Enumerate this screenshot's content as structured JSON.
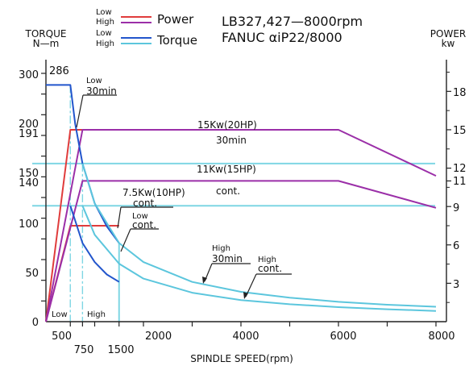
{
  "chart_data": {
    "type": "line",
    "title": "LB327,427—8000rpm",
    "subtitle": "FANUC αiP22/8000",
    "xlabel": "SPINDLE SPEED(rpm)",
    "ylabel": "TORQUE",
    "ylabel_unit": "N—m",
    "y2label": "POWER",
    "y2label_unit": "kw",
    "xlim": [
      0,
      8000
    ],
    "ylim": [
      0,
      300
    ],
    "y2lim": [
      0,
      20.3
    ],
    "x_tick_labels": [
      "500",
      "750",
      "1500",
      "2000",
      "4000",
      "6000",
      "8000"
    ],
    "y_tick_labels": [
      "0",
      "50",
      "100",
      "140",
      "150",
      "191",
      "200",
      "286",
      "300"
    ],
    "y2_tick_labels": [
      "3",
      "6",
      "9",
      "11",
      "12",
      "15",
      "18"
    ],
    "legend": {
      "power_label": "Power",
      "torque_label": "Torque",
      "low": "Low",
      "high": "High",
      "placement": "top-left"
    },
    "colors": {
      "power_low": "#e03c3c",
      "power_high": "#9b2fa8",
      "torque_low": "#2255cc",
      "torque_high": "#5cc6dd",
      "ref": "#7fd6e4",
      "axis": "#222222",
      "highlight": "#1e6fd6"
    },
    "series": [
      {
        "name": "Low Power 30min",
        "x": [
          0,
          500,
          750,
          1500
        ],
        "y": [
          0,
          15,
          15,
          15
        ],
        "axis": "right"
      },
      {
        "name": "Low Power cont.",
        "x": [
          0,
          500,
          1500
        ],
        "y": [
          0,
          7.5,
          7.5
        ],
        "axis": "right"
      },
      {
        "name": "High Power 30min",
        "x": [
          0,
          750,
          6000,
          8000
        ],
        "y": [
          0,
          15,
          15,
          11.4
        ],
        "axis": "right"
      },
      {
        "name": "High Power cont.",
        "x": [
          0,
          750,
          6000,
          8000
        ],
        "y": [
          0,
          11,
          11,
          8.9
        ],
        "axis": "right"
      },
      {
        "name": "Low Torque 30min",
        "x": [
          0,
          500,
          600,
          750,
          1000,
          1250,
          1500
        ],
        "y": [
          286,
          286,
          239,
          191,
          143,
          115,
          95
        ],
        "axis": "left"
      },
      {
        "name": "Low Torque cont.",
        "x": [
          500,
          750,
          1000,
          1250,
          1500
        ],
        "y": [
          140,
          95,
          72,
          57,
          48
        ],
        "axis": "left"
      },
      {
        "name": "High Torque 30min",
        "x": [
          750,
          1000,
          1500,
          2000,
          3000,
          4000,
          5000,
          6000,
          7000,
          8000
        ],
        "y": [
          191,
          143,
          95,
          72,
          48,
          36,
          29,
          24,
          20.5,
          18
        ]
      },
      {
        "name": "High Torque cont.",
        "x": [
          750,
          1000,
          1500,
          2000,
          3000,
          4000,
          5000,
          6000,
          7000,
          8000
        ],
        "y": [
          140,
          105,
          70,
          52,
          35,
          26,
          21,
          17.5,
          15,
          13
        ]
      }
    ],
    "annotations": {
      "a286": "286",
      "low30_top": "Low",
      "low30_bottom": "30min",
      "p15_top": "15Kw(20HP)",
      "p15_bottom": "30min",
      "p11_top": "11Kw(15HP)",
      "p11_bottom": "cont.",
      "p75_top": "7.5Kw(10HP)",
      "p75_bottom": "cont.",
      "lowcont_top": "Low",
      "lowcont_bottom": "cont.",
      "high30_top": "High",
      "high30_bottom": "30min",
      "highcont_top": "High",
      "highcont_bottom": "cont.",
      "range_low": "Low",
      "range_high": "High"
    }
  }
}
